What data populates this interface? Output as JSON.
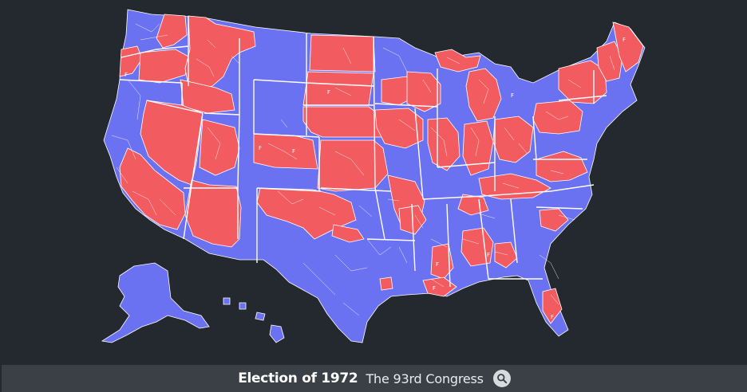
{
  "map": {
    "colors": {
      "background": "#23292e",
      "democrat": "#6b72f2",
      "republican": "#f25c61",
      "border": "#ffffff",
      "footer_bg": "#3a4045"
    },
    "labels": {
      "ga_marker": "F",
      "fl_marker": "F",
      "la_marker": "F",
      "ms_marker": "F",
      "ks_marker_1": "F",
      "ks_marker_2": "F",
      "sd_marker": "F",
      "or_marker": "F",
      "me_marker": "F",
      "nm_marker": "F"
    }
  },
  "footer": {
    "title": "Election of 1972",
    "subtitle": "The 93rd Congress",
    "search_icon": "search-icon"
  }
}
